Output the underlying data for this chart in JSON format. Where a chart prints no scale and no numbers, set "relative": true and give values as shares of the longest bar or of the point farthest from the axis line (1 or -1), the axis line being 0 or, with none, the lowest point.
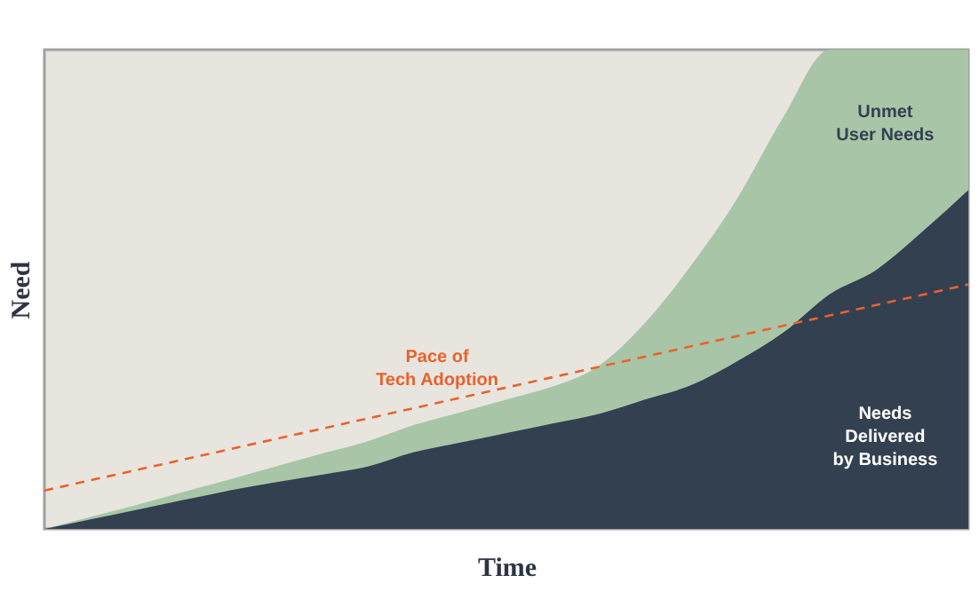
{
  "chart_data": {
    "type": "area",
    "relative": true,
    "xlabel": "Time",
    "ylabel": "Need",
    "categories": [
      null,
      null,
      null,
      null,
      null,
      null,
      null,
      null,
      null,
      null,
      null,
      null,
      null,
      null,
      null,
      null,
      null,
      null,
      null,
      null,
      null
    ],
    "series": [
      {
        "name": "Unmet\nUser Needs",
        "color": "#a8c5a8",
        "values": [
          0,
          0.025,
          0.05,
          0.077,
          0.103,
          0.13,
          0.157,
          0.183,
          0.217,
          0.243,
          0.27,
          0.297,
          0.34,
          0.43,
          0.55,
          0.69,
          0.86,
          1.0,
          1.0,
          1.0,
          1.0
        ]
      },
      {
        "name": "Needs\nDelivered\nby Business",
        "color": "#334050",
        "values": [
          0,
          0.02,
          0.04,
          0.06,
          0.08,
          0.097,
          0.113,
          0.13,
          0.16,
          0.18,
          0.2,
          0.22,
          0.24,
          0.27,
          0.3,
          0.35,
          0.41,
          0.49,
          0.54,
          0.62,
          0.707
        ]
      },
      {
        "name": "Pace of\nTech Adoption",
        "type": "line",
        "line_style": "dashed",
        "color": "#e8622c",
        "values": [
          0.08,
          0.1015,
          0.123,
          0.1445,
          0.166,
          0.1875,
          0.209,
          0.2305,
          0.252,
          0.2735,
          0.295,
          0.3165,
          0.338,
          0.3595,
          0.381,
          0.4025,
          0.424,
          0.4455,
          0.467,
          0.4885,
          0.51
        ]
      }
    ]
  }
}
